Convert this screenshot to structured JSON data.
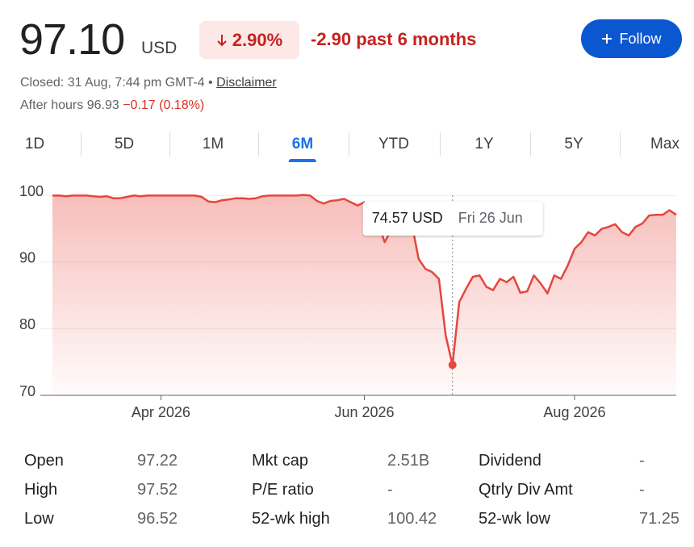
{
  "header": {
    "price": "97.10",
    "currency": "USD",
    "change_pct": "2.90%",
    "change_period": "-2.90 past 6 months",
    "follow": "Follow"
  },
  "status": {
    "closed": "Closed: 31 Aug, 7:44 pm GMT-4",
    "separator": "•",
    "disclaimer": "Disclaimer",
    "after_hours": "After hours 96.93",
    "after_hours_change": "−0.17 (0.18%)"
  },
  "tabs": [
    "1D",
    "5D",
    "1M",
    "6M",
    "YTD",
    "1Y",
    "5Y",
    "Max"
  ],
  "chart_data": {
    "type": "line",
    "color": "#e8453c",
    "categories": [
      null,
      null,
      null,
      null,
      null,
      null,
      null,
      null,
      null,
      null,
      null,
      null,
      null,
      null,
      null,
      null,
      "Apr 2026",
      null,
      null,
      null,
      null,
      null,
      null,
      null,
      null,
      null,
      null,
      null,
      null,
      null,
      null,
      null,
      null,
      null,
      null,
      null,
      null,
      null,
      null,
      null,
      null,
      null,
      null,
      null,
      null,
      null,
      "Jun 2026",
      null,
      null,
      null,
      null,
      null,
      null,
      null,
      null,
      null,
      null,
      null,
      null,
      null,
      null,
      null,
      null,
      null,
      null,
      null,
      null,
      null,
      null,
      null,
      null,
      null,
      null,
      null,
      null,
      null,
      null,
      "Aug 2026",
      null,
      null,
      null,
      null,
      null,
      null,
      null,
      null,
      null,
      null,
      null,
      null,
      null,
      null,
      null
    ],
    "values": [
      100.0,
      100.0,
      99.9,
      100.0,
      100.0,
      100.0,
      99.9,
      99.8,
      99.9,
      99.6,
      99.6,
      99.8,
      100.0,
      99.9,
      100.0,
      100.0,
      100.0,
      100.0,
      100.0,
      100.0,
      100.0,
      100.0,
      99.8,
      99.1,
      99.0,
      99.3,
      99.4,
      99.6,
      99.6,
      99.5,
      99.6,
      99.9,
      100.0,
      100.0,
      100.0,
      100.0,
      100.0,
      100.1,
      100.0,
      99.2,
      98.8,
      99.2,
      99.3,
      99.5,
      99.0,
      98.5,
      99.0,
      97.5,
      96.0,
      93.0,
      95.0,
      95.5,
      96.0,
      95.8,
      90.5,
      89.0,
      88.5,
      87.5,
      79.0,
      74.57,
      84.0,
      86.0,
      87.8,
      88.0,
      86.3,
      85.8,
      87.5,
      87.0,
      87.8,
      85.4,
      85.6,
      88.0,
      86.8,
      85.3,
      88.0,
      87.5,
      89.5,
      92.0,
      93.0,
      94.5,
      94.0,
      95.0,
      95.3,
      95.7,
      94.5,
      94.0,
      95.3,
      95.8,
      97.0,
      97.1,
      97.1,
      97.8,
      97.1
    ],
    "value_labels": [
      null,
      null,
      null,
      null,
      null,
      null,
      null,
      null,
      null,
      null,
      null,
      null,
      null,
      null,
      null,
      null,
      null,
      null,
      null,
      null,
      null,
      null,
      null,
      null,
      null,
      null,
      null,
      null,
      null,
      null,
      null,
      null,
      null,
      null,
      null,
      null,
      null,
      null,
      null,
      null,
      null,
      null,
      null,
      null,
      null,
      null,
      null,
      null,
      null,
      null,
      null,
      null,
      null,
      null,
      null,
      null,
      null,
      null,
      null,
      "74.57 USD",
      null,
      null,
      null,
      null,
      null,
      null,
      null,
      null,
      null,
      null,
      null,
      null,
      null,
      null,
      null,
      null,
      null,
      null,
      null,
      null,
      null,
      null,
      null,
      null,
      null,
      null,
      null,
      null,
      null,
      null,
      null,
      null,
      null
    ],
    "annotation": "Fri 26 Jun",
    "ylim": [
      70,
      101.5
    ],
    "yticks": [
      70,
      80,
      90,
      100
    ],
    "grid": true
  },
  "table": {
    "rows": [
      [
        "Open",
        "97.22",
        "Mkt cap",
        "2.51B",
        "Dividend",
        "-"
      ],
      [
        "High",
        "97.52",
        "P/E ratio",
        "-",
        "Qtrly Div Amt",
        "-"
      ],
      [
        "Low",
        "96.52",
        "52-wk high",
        "100.42",
        "52-wk low",
        "71.25"
      ]
    ]
  }
}
